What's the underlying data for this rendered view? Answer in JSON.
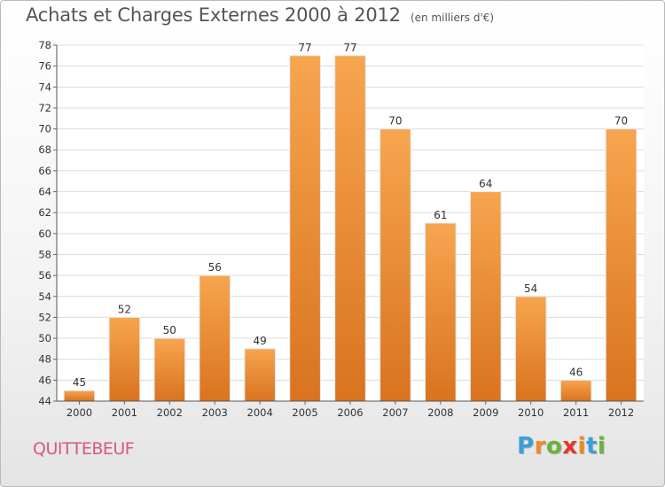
{
  "header": {
    "title": "Achats et Charges Externes 2000 à 2012",
    "subtitle": "(en milliers d'€)"
  },
  "footer": {
    "place": "QUITTEBEUF",
    "logo": "Proxiti"
  },
  "colors": {
    "bar_light": "#f7a54f",
    "bar_dark": "#d9731f",
    "grid": "#dcdcdc",
    "place": "#d65a7d",
    "logo_letters": [
      "#3aa0d8",
      "#f08a24",
      "#6bb33a",
      "#e2362d",
      "#f08a24",
      "#3aa0d8",
      "#6bb33a"
    ]
  },
  "chart_data": {
    "type": "bar",
    "title": "Achats et Charges Externes 2000 à 2012",
    "subtitle": "(en milliers d'€)",
    "categories": [
      "2000",
      "2001",
      "2002",
      "2003",
      "2004",
      "2005",
      "2006",
      "2007",
      "2008",
      "2009",
      "2010",
      "2011",
      "2012"
    ],
    "values": [
      45,
      52,
      50,
      56,
      49,
      77,
      77,
      70,
      61,
      64,
      54,
      46,
      70
    ],
    "ylim": [
      44,
      78
    ],
    "yticks": [
      44,
      46,
      48,
      50,
      52,
      54,
      56,
      58,
      60,
      62,
      64,
      66,
      68,
      70,
      72,
      74,
      76,
      78
    ],
    "grid": true,
    "legend": "none"
  }
}
